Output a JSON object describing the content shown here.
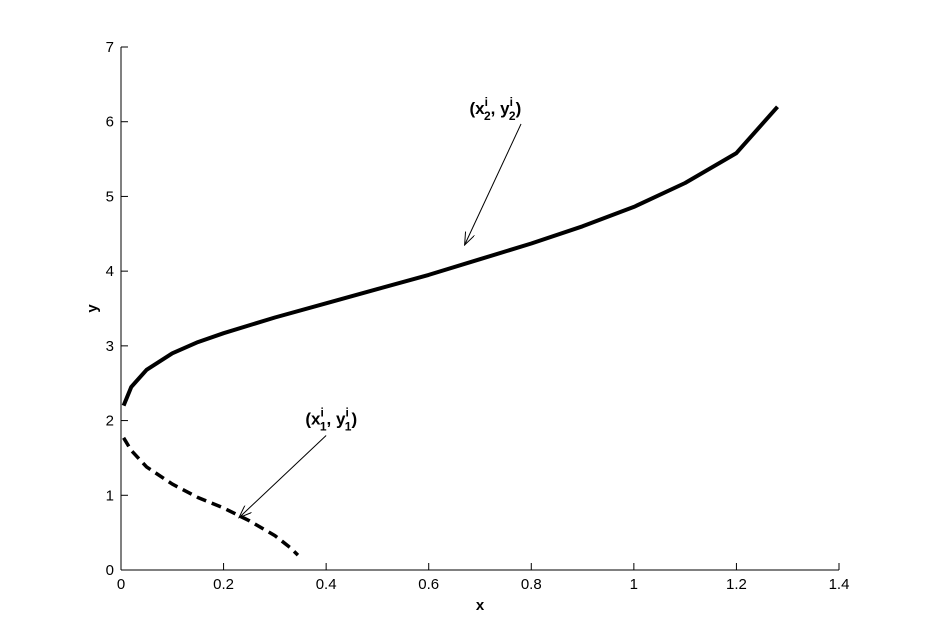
{
  "chart_data": {
    "type": "line",
    "title": "",
    "xlabel": "x",
    "ylabel": "y",
    "xlim": [
      0,
      1.4
    ],
    "ylim": [
      0,
      7
    ],
    "xticks": [
      "0",
      "0.2",
      "0.4",
      "0.6",
      "0.8",
      "1",
      "1.2",
      "1.4"
    ],
    "yticks": [
      "0",
      "1",
      "2",
      "3",
      "4",
      "5",
      "6",
      "7"
    ],
    "grid": false,
    "series": [
      {
        "style": "solid",
        "color": "#000000",
        "x": [
          0.005,
          0.02,
          0.05,
          0.1,
          0.15,
          0.2,
          0.3,
          0.4,
          0.5,
          0.6,
          0.7,
          0.8,
          0.9,
          1.0,
          1.1,
          1.2,
          1.28
        ],
        "y": [
          2.2,
          2.45,
          2.68,
          2.9,
          3.05,
          3.17,
          3.38,
          3.57,
          3.76,
          3.95,
          4.16,
          4.37,
          4.6,
          4.86,
          5.18,
          5.58,
          6.2
        ]
      },
      {
        "style": "dashed",
        "color": "#000000",
        "x": [
          0.005,
          0.02,
          0.05,
          0.1,
          0.15,
          0.2,
          0.25,
          0.3,
          0.33,
          0.345
        ],
        "y": [
          1.77,
          1.6,
          1.38,
          1.15,
          0.97,
          0.83,
          0.66,
          0.46,
          0.3,
          0.2
        ]
      }
    ],
    "annotations": [
      {
        "base": "(x",
        "sub1": "2",
        "sup1": "i",
        "mid": ", y",
        "sub2": "2",
        "sup2": "i",
        "end": ")",
        "text_at": [
          0.73,
          6.1
        ],
        "arrow_from": [
          0.78,
          5.97
        ],
        "arrow_to": [
          0.67,
          4.35
        ]
      },
      {
        "base": "(x",
        "sub1": "1",
        "sup1": "i",
        "mid": ", y",
        "sub2": "1",
        "sup2": "i",
        "end": ")",
        "text_at": [
          0.41,
          1.95
        ],
        "arrow_from": [
          0.4,
          1.8
        ],
        "arrow_to": [
          0.23,
          0.7
        ]
      }
    ]
  }
}
